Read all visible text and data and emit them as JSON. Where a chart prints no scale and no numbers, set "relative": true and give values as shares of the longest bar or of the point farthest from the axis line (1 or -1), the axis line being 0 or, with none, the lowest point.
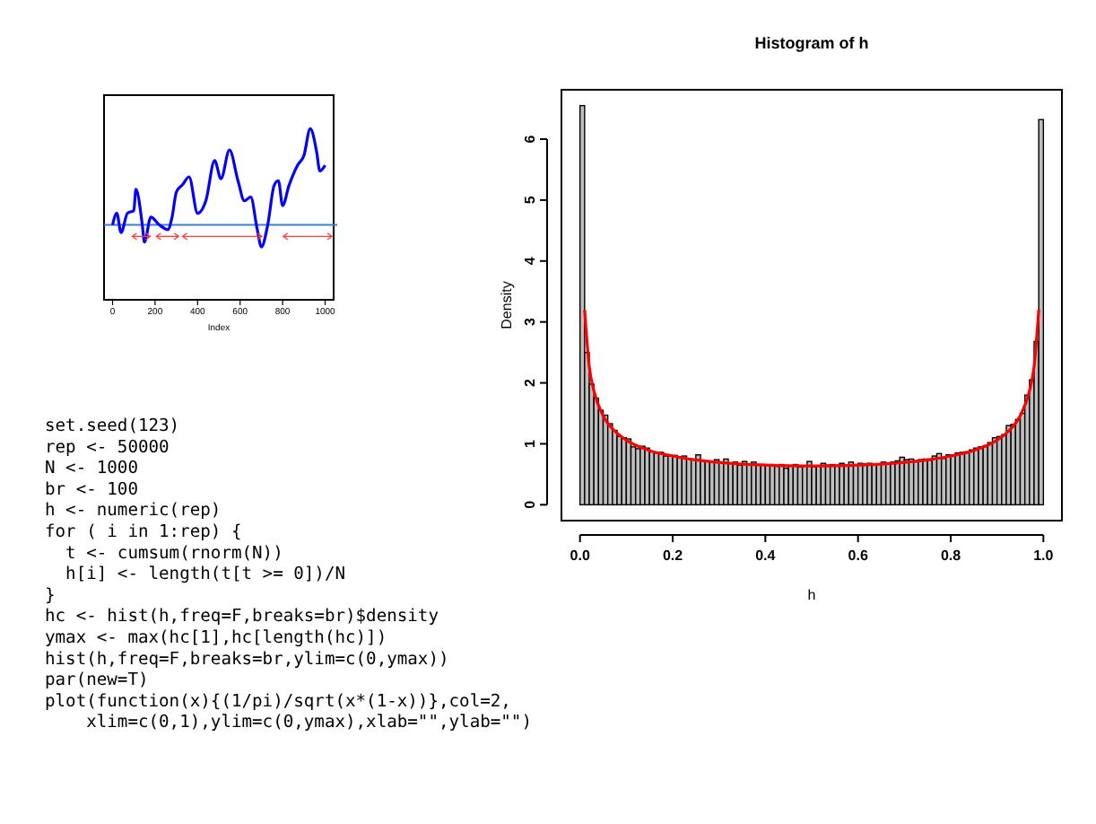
{
  "chart_data": [
    {
      "type": "line",
      "relative": true,
      "xlabel": "Index",
      "xlim": [
        -40,
        1040
      ],
      "xticks": [
        0,
        200,
        400,
        600,
        800,
        1000
      ],
      "tick_labels": "x",
      "x": [
        0,
        20,
        40,
        70,
        100,
        110,
        140,
        150,
        180,
        220,
        260,
        280,
        300,
        330,
        360,
        400,
        440,
        480,
        510,
        550,
        590,
        620,
        650,
        680,
        700,
        730,
        760,
        780,
        800,
        830,
        870,
        900,
        930,
        960,
        975,
        1000
      ],
      "series": [
        {
          "color": "#0000ff",
          "values": [
            0,
            0.12,
            -0.08,
            0.12,
            0.15,
            0.37,
            0,
            -0.18,
            0.08,
            0,
            -0.05,
            0.08,
            0.34,
            0.42,
            0.5,
            0.12,
            0.26,
            0.67,
            0.48,
            0.78,
            0.46,
            0.25,
            0.29,
            -0.04,
            -0.23,
            0,
            0.41,
            0.46,
            0.2,
            0.41,
            0.62,
            0.72,
            1,
            0.76,
            0.56,
            0.62
          ]
        }
      ],
      "ref_lines": [
        {
          "axis": "y",
          "value": 0,
          "color": "#3a7fd0"
        }
      ]
    },
    {
      "type": "histogram",
      "title": "Histogram of h",
      "xlabel": "h",
      "ylabel": "Density",
      "xlim": [
        -0.04,
        1.04
      ],
      "ylim": [
        -0.26,
        6.81
      ],
      "xticks": [
        {
          "value": 0,
          "label": "0.0"
        },
        0.2,
        0.4,
        0.6,
        0.8,
        {
          "value": 1,
          "label": "1.0"
        }
      ],
      "yticks": [
        0,
        1,
        2,
        3,
        4,
        5,
        6
      ],
      "color": "#bebebe",
      "bins": [
        0,
        0.01,
        0.02,
        0.03,
        0.04,
        0.05,
        0.06,
        0.07,
        0.08,
        0.09,
        0.1,
        0.11,
        0.12,
        0.13,
        0.14,
        0.15,
        0.16,
        0.17,
        0.18,
        0.19,
        0.2,
        0.21,
        0.22,
        0.23,
        0.24,
        0.25,
        0.26,
        0.27,
        0.28,
        0.29,
        0.3,
        0.31,
        0.32,
        0.33,
        0.34,
        0.35,
        0.36,
        0.37,
        0.38,
        0.39,
        0.4,
        0.41,
        0.42,
        0.43,
        0.44,
        0.45,
        0.46,
        0.47,
        0.48,
        0.49,
        0.5,
        0.51,
        0.52,
        0.53,
        0.54,
        0.55,
        0.56,
        0.57,
        0.58,
        0.59,
        0.6,
        0.61,
        0.62,
        0.63,
        0.64,
        0.65,
        0.66,
        0.67,
        0.68,
        0.69,
        0.7,
        0.71,
        0.72,
        0.73,
        0.74,
        0.75,
        0.76,
        0.77,
        0.78,
        0.79,
        0.8,
        0.81,
        0.82,
        0.83,
        0.84,
        0.85,
        0.86,
        0.87,
        0.88,
        0.89,
        0.9,
        0.91,
        0.92,
        0.93,
        0.94,
        0.95,
        0.96,
        0.97,
        0.98,
        0.99,
        1
      ],
      "values": [
        6.55,
        2.5,
        1.98,
        1.75,
        1.55,
        1.47,
        1.33,
        1.22,
        1.12,
        1.1,
        1.08,
        0.95,
        0.92,
        0.96,
        0.93,
        0.87,
        0.85,
        0.86,
        0.8,
        0.8,
        0.81,
        0.79,
        0.8,
        0.76,
        0.74,
        0.82,
        0.72,
        0.72,
        0.71,
        0.74,
        0.7,
        0.75,
        0.68,
        0.7,
        0.65,
        0.71,
        0.67,
        0.7,
        0.66,
        0.66,
        0.65,
        0.66,
        0.63,
        0.66,
        0.6,
        0.64,
        0.66,
        0.62,
        0.64,
        0.71,
        0.62,
        0.64,
        0.68,
        0.65,
        0.66,
        0.65,
        0.68,
        0.64,
        0.7,
        0.65,
        0.68,
        0.67,
        0.68,
        0.66,
        0.67,
        0.7,
        0.67,
        0.7,
        0.72,
        0.78,
        0.74,
        0.75,
        0.72,
        0.74,
        0.75,
        0.73,
        0.8,
        0.84,
        0.76,
        0.82,
        0.82,
        0.85,
        0.86,
        0.87,
        0.9,
        0.93,
        0.95,
        0.97,
        1.02,
        1.1,
        1.12,
        1.15,
        1.3,
        1.32,
        1.4,
        1.5,
        1.8,
        2.05,
        2.68,
        6.32
      ],
      "series": [
        {
          "type": "line",
          "color": "#ff0000",
          "x": [
            0.01,
            0.02,
            0.03,
            0.05,
            0.075,
            0.1,
            0.15,
            0.2,
            0.25,
            0.3,
            0.35,
            0.4,
            0.45,
            0.5,
            0.55,
            0.6,
            0.65,
            0.7,
            0.75,
            0.8,
            0.85,
            0.9,
            0.925,
            0.95,
            0.97,
            0.98,
            0.99
          ],
          "values": [
            3.2,
            2.27,
            1.87,
            1.46,
            1.21,
            1.06,
            0.89,
            0.8,
            0.735,
            0.695,
            0.667,
            0.65,
            0.64,
            0.637,
            0.64,
            0.65,
            0.667,
            0.695,
            0.735,
            0.8,
            0.89,
            1.06,
            1.21,
            1.46,
            1.87,
            2.27,
            3.2
          ]
        }
      ]
    },
    {
      "type": "other",
      "annotations": [
        "set.seed(123)",
        "rep <- 50000",
        "N <- 1000",
        "br <- 100",
        "h <- numeric(rep)",
        "for ( i in 1:rep) {",
        "  t <- cumsum(rnorm(N))",
        "  h[i] <- length(t[t >= 0])/N",
        "}",
        "hc <- hist(h,freq=F,breaks=br)$density",
        "ymax <- max(hc[1],hc[length(hc)])",
        "hist(h,freq=F,breaks=br,ylim=c(0,ymax))",
        "par(new=T)",
        "plot(function(x){(1/pi)/sqrt(x*(1-x))},col=2,",
        "    xlim=c(0,1),ylim=c(0,ymax),xlab=\"\",ylab=\"\")"
      ]
    }
  ]
}
